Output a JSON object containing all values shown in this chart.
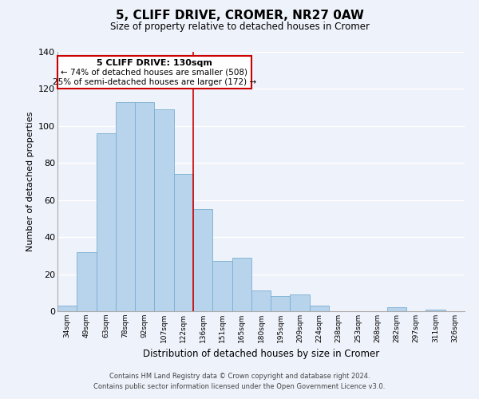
{
  "title": "5, CLIFF DRIVE, CROMER, NR27 0AW",
  "subtitle": "Size of property relative to detached houses in Cromer",
  "xlabel": "Distribution of detached houses by size in Cromer",
  "ylabel": "Number of detached properties",
  "bar_color": "#b8d4ed",
  "bar_edge_color": "#7aaed0",
  "categories": [
    "34sqm",
    "49sqm",
    "63sqm",
    "78sqm",
    "92sqm",
    "107sqm",
    "122sqm",
    "136sqm",
    "151sqm",
    "165sqm",
    "180sqm",
    "195sqm",
    "209sqm",
    "224sqm",
    "238sqm",
    "253sqm",
    "268sqm",
    "282sqm",
    "297sqm",
    "311sqm",
    "326sqm"
  ],
  "values": [
    3,
    32,
    96,
    113,
    113,
    109,
    74,
    55,
    27,
    29,
    11,
    8,
    9,
    3,
    0,
    0,
    0,
    2,
    0,
    1,
    0
  ],
  "ylim": [
    0,
    140
  ],
  "yticks": [
    0,
    20,
    40,
    60,
    80,
    100,
    120,
    140
  ],
  "annotation_box_text_line1": "5 CLIFF DRIVE: 130sqm",
  "annotation_box_text_line2": "← 74% of detached houses are smaller (508)",
  "annotation_box_text_line3": "25% of semi-detached houses are larger (172) →",
  "annotation_box_color": "#cc0000",
  "annotation_box_fill": "#ffffff",
  "vline_x": 6.5,
  "vline_color": "#cc0000",
  "footer_line1": "Contains HM Land Registry data © Crown copyright and database right 2024.",
  "footer_line2": "Contains public sector information licensed under the Open Government Licence v3.0.",
  "background_color": "#eef2fa",
  "grid_color": "#ffffff"
}
